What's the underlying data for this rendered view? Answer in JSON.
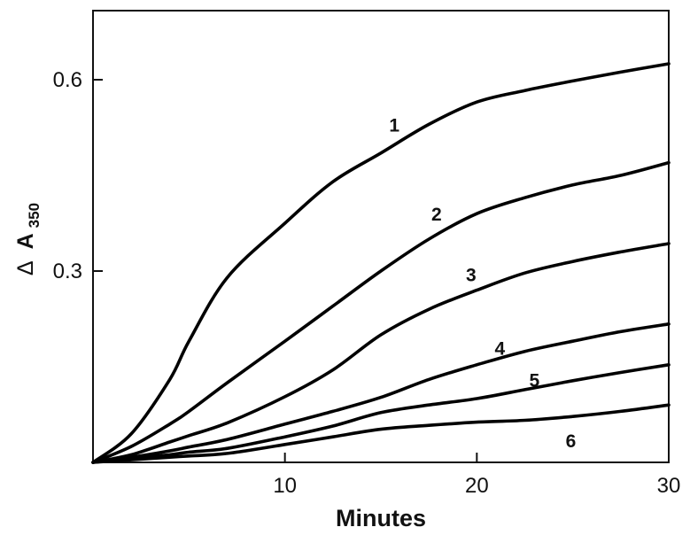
{
  "chart_data": {
    "type": "line",
    "title": "",
    "xlabel": "Minutes",
    "ylabel": "Δ A350",
    "ylabel_parts": {
      "prefix": "Δ",
      "main": "A",
      "subscript": "350"
    },
    "xlim": [
      0,
      30
    ],
    "ylim": [
      0,
      0.7
    ],
    "x_ticks": [
      10,
      20,
      30
    ],
    "x_tick_labels": [
      "10",
      "20",
      "30"
    ],
    "y_ticks": [
      0.3,
      0.6
    ],
    "y_tick_labels": [
      "0.3",
      "0.6"
    ],
    "grid": false,
    "legend": "inline curve labels",
    "x": [
      0,
      2,
      4,
      5,
      7,
      10,
      12.5,
      15,
      17.5,
      20,
      22.5,
      25,
      27.5,
      30
    ],
    "series": [
      {
        "name": "1",
        "values": [
          0,
          0.045,
          0.13,
          0.19,
          0.29,
          0.375,
          0.44,
          0.485,
          0.53,
          0.565,
          0.583,
          0.598,
          0.612,
          0.625
        ]
      },
      {
        "name": "2",
        "values": [
          0,
          0.025,
          0.06,
          0.08,
          0.125,
          0.19,
          0.245,
          0.3,
          0.35,
          0.39,
          0.415,
          0.435,
          0.45,
          0.47
        ]
      },
      {
        "name": "3",
        "values": [
          0,
          0.012,
          0.032,
          0.042,
          0.062,
          0.103,
          0.145,
          0.2,
          0.24,
          0.27,
          0.297,
          0.315,
          0.33,
          0.343
        ]
      },
      {
        "name": "4",
        "values": [
          0,
          0.008,
          0.018,
          0.024,
          0.036,
          0.06,
          0.08,
          0.102,
          0.13,
          0.153,
          0.174,
          0.19,
          0.205,
          0.217
        ]
      },
      {
        "name": "5",
        "values": [
          0,
          0.006,
          0.012,
          0.016,
          0.022,
          0.04,
          0.057,
          0.078,
          0.09,
          0.1,
          0.114,
          0.128,
          0.141,
          0.153
        ]
      },
      {
        "name": "6",
        "values": [
          0,
          0.004,
          0.008,
          0.01,
          0.014,
          0.028,
          0.04,
          0.052,
          0.058,
          0.063,
          0.066,
          0.072,
          0.08,
          0.09
        ]
      }
    ],
    "curve_label_positions": [
      {
        "name": "1",
        "x": 15.7,
        "y": 0.53
      },
      {
        "name": "2",
        "x": 17.9,
        "y": 0.39
      },
      {
        "name": "3",
        "x": 19.7,
        "y": 0.295
      },
      {
        "name": "4",
        "x": 21.2,
        "y": 0.18
      },
      {
        "name": "5",
        "x": 23,
        "y": 0.13
      },
      {
        "name": "6",
        "x": 24.9,
        "y": 0.035
      }
    ]
  }
}
